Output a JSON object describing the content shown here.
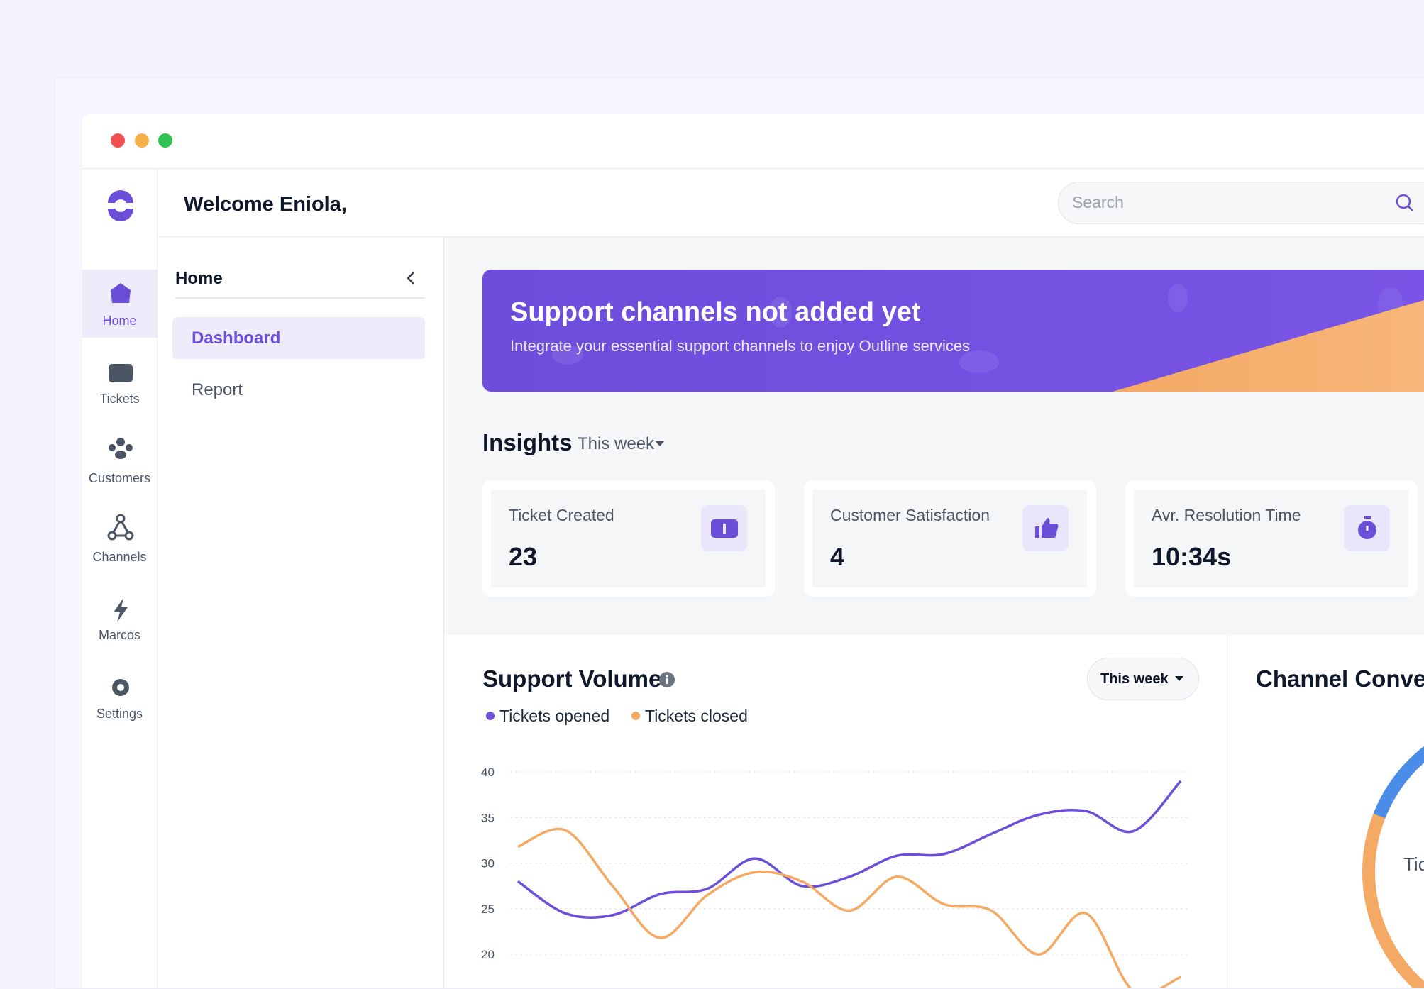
{
  "window": {
    "greeting": "Welcome Eniola,",
    "search_placeholder": "Search"
  },
  "sidebar": {
    "items": [
      "Home",
      "Tickets",
      "Customers",
      "Channels",
      "Marcos",
      "Settings"
    ]
  },
  "subnav": {
    "title": "Home",
    "items": [
      "Dashboard",
      "Report"
    ]
  },
  "banner": {
    "title": "Support channels not added yet",
    "subtitle": "Integrate your essential support channels to enjoy Outline services"
  },
  "insights": {
    "title": "Insights",
    "period": "This week",
    "cards": [
      {
        "label": "Ticket Created",
        "value": 23
      },
      {
        "label": "Customer Satisfaction",
        "value": 4
      },
      {
        "label": "Avr. Resolution Time",
        "value": "10:34s"
      }
    ]
  },
  "chart_data": {
    "type": "line",
    "title": "Support Volume",
    "period": "This week",
    "categories": [
      null,
      null,
      null,
      null,
      null,
      null,
      null,
      null,
      null,
      null,
      null,
      null,
      null,
      null,
      null
    ],
    "series": [
      {
        "name": "Tickets opened",
        "color": "#6b4fd8",
        "values": [
          28,
          24.5,
          24.3,
          26.6,
          27.2,
          30.5,
          27.5,
          28.5,
          30.8,
          31,
          33.2,
          35.3,
          35.7,
          33.5,
          39
        ]
      },
      {
        "name": "Tickets closed",
        "color": "#f4a964",
        "values": [
          31.8,
          33.6,
          27.5,
          21.8,
          26.5,
          29,
          28,
          24.8,
          28.5,
          25.5,
          24.8,
          20,
          24.5,
          16,
          17.5
        ]
      }
    ],
    "ylim": [
      10,
      40
    ],
    "yticks": [
      20,
      25,
      30,
      35,
      40
    ],
    "grid": true
  },
  "channel_panel": {
    "title": "Channel Conver",
    "center_label": "Tic"
  }
}
